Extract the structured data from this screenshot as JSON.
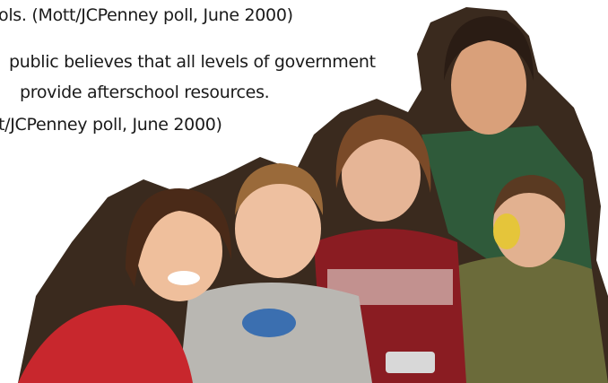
{
  "text_lines": [
    "ols. (Mott/JCPenney poll, June 2000)",
    "public believes that all levels of government",
    "provide afterschool resources.",
    "t/JCPenney poll, June 2000)"
  ]
}
